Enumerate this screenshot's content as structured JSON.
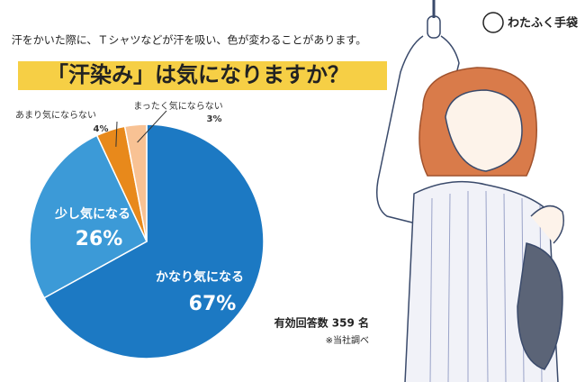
{
  "header": {
    "logo": "わたふく手袋"
  },
  "chart_data": {
    "type": "pie",
    "subtitle": "汗をかいた際に、Ｔシャツなどが汗を吸い、色が変わることがあります。",
    "title": "「汗染み」は気になりますか？",
    "categories": [
      "かなり気になる",
      "少し気になる",
      "あまり気にならない",
      "まったく気にならない"
    ],
    "values": [
      67,
      26,
      4,
      3
    ],
    "value_labels": [
      "67%",
      "26%",
      "4%",
      "3%"
    ],
    "colors": [
      "#1c79c3",
      "#3c9ad7",
      "#e8891b",
      "#f8c294"
    ],
    "annotations": [
      "有効回答数 359 名",
      "※当社調べ"
    ]
  }
}
